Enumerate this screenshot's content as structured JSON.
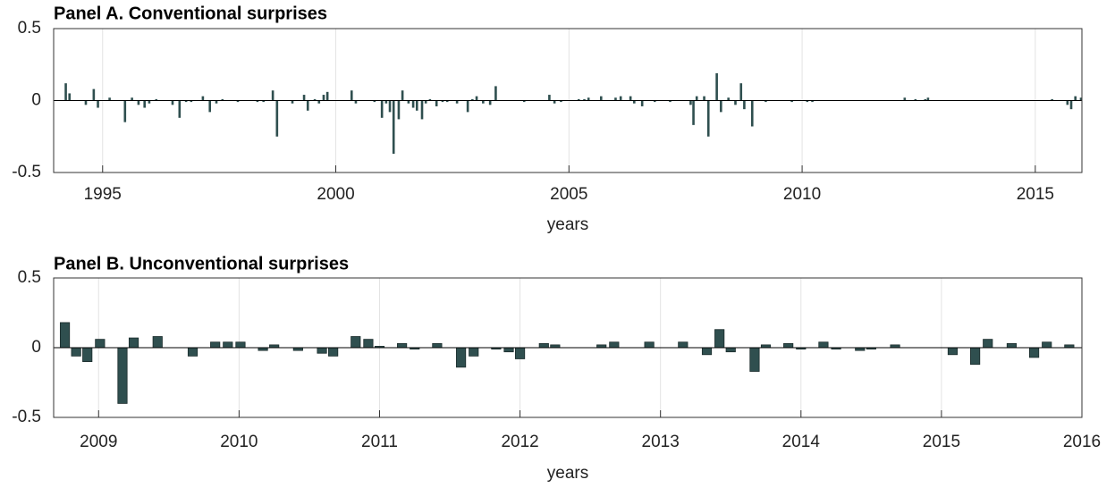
{
  "chart_data": [
    {
      "type": "bar",
      "title": "Panel A. Conventional surprises",
      "xlabel": "years",
      "color": "#2f4f4f",
      "grid": true,
      "xlim": [
        1993.95,
        2016.0
      ],
      "ylim": [
        -0.5,
        0.5
      ],
      "xticks": [
        1995,
        2000,
        2005,
        2010,
        2015
      ],
      "yticks": [
        -0.5,
        0,
        0.5
      ],
      "x": [
        1994.21,
        1994.29,
        1994.64,
        1994.81,
        1994.9,
        1995.15,
        1995.48,
        1995.63,
        1995.77,
        1995.9,
        1996.0,
        1996.15,
        1996.5,
        1996.65,
        1996.79,
        1996.9,
        1997.15,
        1997.3,
        1997.44,
        1997.57,
        1997.9,
        1998.32,
        1998.45,
        1998.65,
        1998.74,
        1999.07,
        1999.32,
        1999.4,
        1999.55,
        1999.64,
        1999.74,
        1999.82,
        2000.34,
        2000.43,
        2000.83,
        2000.99,
        2001.08,
        2001.16,
        2001.24,
        2001.35,
        2001.43,
        2001.56,
        2001.66,
        2001.74,
        2001.85,
        2001.93,
        2002.02,
        2002.16,
        2002.29,
        2002.39,
        2002.6,
        2002.83,
        2002.93,
        2003.02,
        2003.16,
        2003.31,
        2003.43,
        2004.04,
        2004.58,
        2004.69,
        2004.83,
        2005.21,
        2005.33,
        2005.42,
        2005.69,
        2006.0,
        2006.11,
        2006.32,
        2006.4,
        2006.57,
        2006.84,
        2007.17,
        2007.61,
        2007.67,
        2007.74,
        2007.9,
        2007.99,
        2008.17,
        2008.26,
        2008.42,
        2008.57,
        2008.69,
        2008.76,
        2008.93,
        2009.22,
        2009.78,
        2010.11,
        2010.22,
        2012.2,
        2012.43,
        2012.64,
        2012.7,
        2015.36,
        2015.69,
        2015.77,
        2015.86,
        2015.98
      ],
      "values": [
        0.12,
        0.05,
        -0.03,
        0.08,
        -0.05,
        0.02,
        -0.15,
        0.02,
        -0.03,
        -0.05,
        -0.02,
        0.01,
        -0.03,
        -0.12,
        -0.01,
        -0.01,
        0.03,
        -0.08,
        -0.02,
        0.01,
        -0.01,
        -0.01,
        -0.01,
        0.07,
        -0.25,
        -0.02,
        0.04,
        -0.07,
        0.01,
        -0.02,
        0.04,
        0.06,
        0.07,
        -0.02,
        -0.01,
        -0.12,
        -0.02,
        -0.08,
        -0.37,
        -0.13,
        0.07,
        -0.02,
        -0.05,
        -0.07,
        -0.13,
        -0.02,
        0.01,
        -0.04,
        -0.01,
        -0.01,
        -0.02,
        -0.08,
        0.01,
        0.03,
        -0.02,
        -0.03,
        0.1,
        -0.01,
        0.04,
        -0.02,
        -0.01,
        0.01,
        0.01,
        0.02,
        0.03,
        0.02,
        0.03,
        0.03,
        -0.02,
        -0.04,
        -0.01,
        -0.01,
        -0.03,
        -0.17,
        0.03,
        0.03,
        -0.25,
        0.19,
        -0.08,
        0.02,
        -0.03,
        0.12,
        -0.06,
        -0.18,
        -0.01,
        -0.01,
        -0.01,
        -0.01,
        0.02,
        0.01,
        0.01,
        0.02,
        0.01,
        -0.03,
        -0.06,
        0.03,
        0.02
      ]
    },
    {
      "type": "bar",
      "title": "Panel B. Unconventional surprises",
      "xlabel": "years",
      "color": "#2f4f4f",
      "grid": true,
      "xlim": [
        2008.68,
        2016.0
      ],
      "ylim": [
        -0.5,
        0.5
      ],
      "xticks": [
        2009,
        2010,
        2011,
        2012,
        2013,
        2014,
        2015,
        2016
      ],
      "yticks": [
        -0.5,
        0,
        0.5
      ],
      "x": [
        2008.76,
        2008.84,
        2008.92,
        2009.01,
        2009.17,
        2009.25,
        2009.42,
        2009.67,
        2009.83,
        2009.92,
        2010.01,
        2010.17,
        2010.25,
        2010.42,
        2010.59,
        2010.67,
        2010.83,
        2010.92,
        2011.0,
        2011.16,
        2011.25,
        2011.41,
        2011.58,
        2011.67,
        2011.83,
        2011.92,
        2012.0,
        2012.17,
        2012.25,
        2012.58,
        2012.67,
        2012.92,
        2013.16,
        2013.33,
        2013.42,
        2013.5,
        2013.67,
        2013.75,
        2013.91,
        2014.0,
        2014.16,
        2014.25,
        2014.42,
        2014.5,
        2014.67,
        2015.08,
        2015.24,
        2015.33,
        2015.5,
        2015.66,
        2015.75,
        2015.91
      ],
      "values": [
        0.18,
        -0.06,
        -0.1,
        0.06,
        -0.4,
        0.07,
        0.08,
        -0.06,
        0.04,
        0.04,
        0.04,
        -0.02,
        0.02,
        -0.02,
        -0.04,
        -0.06,
        0.08,
        0.06,
        0.01,
        0.03,
        -0.01,
        0.03,
        -0.14,
        -0.06,
        -0.01,
        -0.03,
        -0.08,
        0.03,
        0.02,
        0.02,
        0.04,
        0.04,
        0.04,
        -0.05,
        0.13,
        -0.03,
        -0.17,
        0.02,
        0.03,
        -0.01,
        0.04,
        -0.01,
        -0.02,
        -0.01,
        0.02,
        -0.05,
        -0.12,
        0.06,
        0.03,
        -0.07,
        0.04,
        0.02
      ]
    }
  ]
}
